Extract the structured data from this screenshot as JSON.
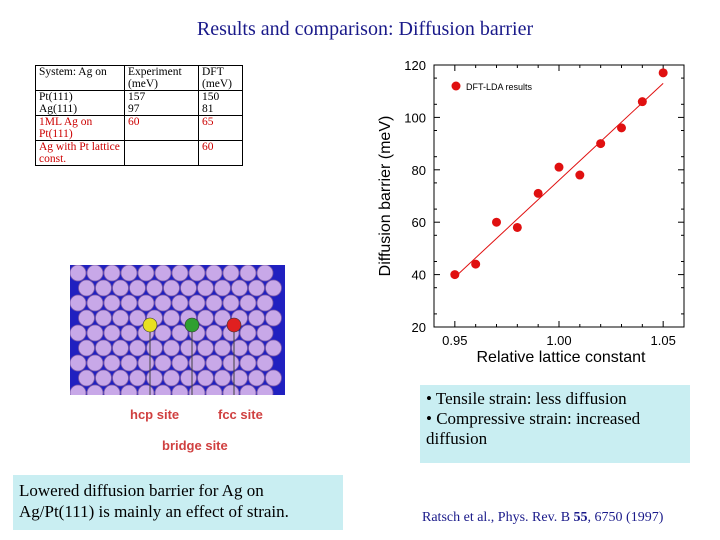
{
  "title": "Results and comparison: Diffusion barrier",
  "table": {
    "header": [
      "System: Ag on",
      "Experiment (meV)",
      "DFT (meV)"
    ],
    "rows": [
      {
        "system": "Pt(111)",
        "experiment": "157",
        "dft": "150"
      },
      {
        "system": "Ag(111)",
        "experiment": "97",
        "dft": "81"
      },
      {
        "system": "1ML Ag on Pt(111)",
        "experiment": "60",
        "dft": "65"
      },
      {
        "system": "Ag with Pt lattice const.",
        "experiment": "",
        "dft": "60"
      }
    ]
  },
  "lattice": {
    "labels": {
      "hcp": "hcp site",
      "fcc": "fcc site",
      "bridge": "bridge site"
    },
    "colors": {
      "hcp": "#e8e020",
      "bridge": "#30a030",
      "fcc": "#e02020",
      "atom": "#c8a8e8",
      "hole": "#2020c0"
    }
  },
  "chart_data": {
    "type": "scatter",
    "xlabel": "Relative lattice constant",
    "ylabel": "Diffusion barrier (meV)",
    "xlim": [
      0.94,
      1.06
    ],
    "ylim": [
      20,
      120
    ],
    "xticks": [
      "0.95",
      "1.00",
      "1.05"
    ],
    "yticks": [
      "20",
      "40",
      "60",
      "80",
      "100",
      "120"
    ],
    "legend": "DFT-LDA results",
    "marker_color": "#e01010",
    "points": [
      {
        "x": 0.95,
        "y": 40
      },
      {
        "x": 0.96,
        "y": 44
      },
      {
        "x": 0.97,
        "y": 60
      },
      {
        "x": 0.98,
        "y": 58
      },
      {
        "x": 0.99,
        "y": 71
      },
      {
        "x": 1.0,
        "y": 81
      },
      {
        "x": 1.01,
        "y": 78
      },
      {
        "x": 1.02,
        "y": 90
      },
      {
        "x": 1.03,
        "y": 96
      },
      {
        "x": 1.04,
        "y": 106
      },
      {
        "x": 1.05,
        "y": 117
      }
    ],
    "fit": [
      {
        "x": 0.95,
        "y": 39
      },
      {
        "x": 1.05,
        "y": 113
      }
    ]
  },
  "strain": {
    "line1": "• Tensile strain: less diffusion",
    "line2": "• Compressive strain: increased diffusion"
  },
  "conclusion": "Lowered diffusion barrier for Ag on Ag/Pt(111) is mainly an effect of strain.",
  "citation": {
    "authors": "Ratsch et al., Phys. Rev. B ",
    "volume": "55",
    "rest": ", 6750 (1997)"
  }
}
